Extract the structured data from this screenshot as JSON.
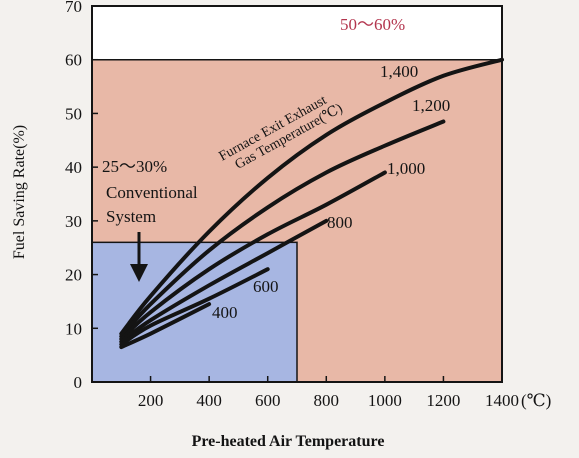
{
  "chart_data": {
    "type": "line",
    "ylabel": "Fuel Saving Rate(%)",
    "xlabel": "Pre-heated Air Temperature",
    "x_unit": "(℃)",
    "xlim": [
      0,
      1400
    ],
    "ylim": [
      0,
      70
    ],
    "x_ticks": [
      200,
      400,
      600,
      800,
      1000,
      1200,
      1400
    ],
    "y_ticks": [
      0,
      10,
      20,
      30,
      40,
      50,
      60,
      70
    ],
    "x_tick_labels": [
      "200",
      "400",
      "600",
      "800",
      "1000",
      "1200",
      "1400"
    ],
    "y_tick_labels": [
      "0",
      "10",
      "20",
      "30",
      "40",
      "50",
      "60",
      "70"
    ],
    "grid": false,
    "colors": {
      "region_high": "#e8b8a7",
      "region_conventional": "#a7b6e2",
      "curve": "#141414",
      "range_text": "#b3354e"
    },
    "curve_group_label": [
      "Furnace Exit Exhaust",
      "Gas Temperature(℃)"
    ],
    "series": [
      {
        "name": "1,400",
        "x": [
          100,
          200,
          400,
          600,
          800,
          1000,
          1200,
          1400
        ],
        "y": [
          9,
          16,
          28,
          38,
          46,
          52,
          57,
          60
        ]
      },
      {
        "name": "1,200",
        "x": [
          100,
          200,
          400,
          600,
          800,
          1000,
          1200
        ],
        "y": [
          8.5,
          14.5,
          24.5,
          32.5,
          39,
          44,
          48.5
        ]
      },
      {
        "name": "1,000",
        "x": [
          100,
          200,
          400,
          600,
          800,
          1000
        ],
        "y": [
          8,
          13,
          21,
          27.5,
          33,
          39
        ]
      },
      {
        "name": "800",
        "x": [
          100,
          200,
          400,
          600,
          800
        ],
        "y": [
          7.5,
          11.5,
          18,
          24,
          30
        ]
      },
      {
        "name": "600",
        "x": [
          100,
          200,
          400,
          600
        ],
        "y": [
          7,
          10.5,
          15.5,
          21
        ]
      },
      {
        "name": "400",
        "x": [
          100,
          200,
          400
        ],
        "y": [
          6.5,
          9,
          14.5
        ]
      }
    ],
    "regions": [
      {
        "name": "high-efficiency-region",
        "x": [
          0,
          1400
        ],
        "y": [
          0,
          60
        ]
      },
      {
        "name": "conventional-system-region",
        "x": [
          0,
          700
        ],
        "y": [
          0,
          26
        ]
      }
    ],
    "annotations": {
      "high_range": "50～60%",
      "conventional_range": "25～30%",
      "conventional_line1": "Conventional",
      "conventional_line2": "System"
    }
  }
}
